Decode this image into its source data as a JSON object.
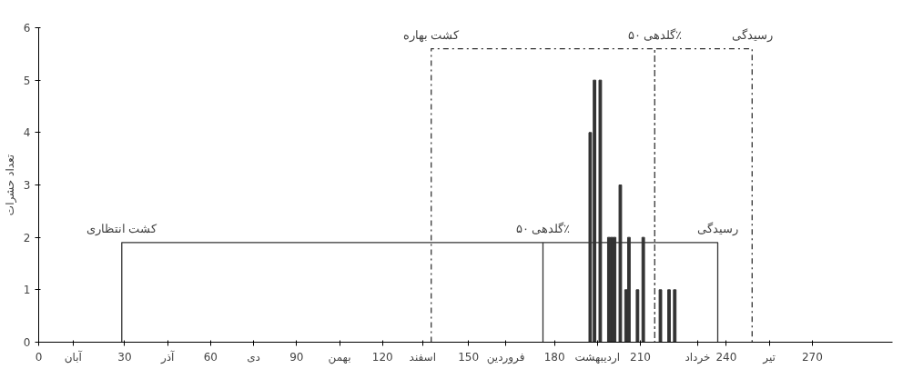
{
  "chart_data": {
    "type": "bar",
    "ylabel": "تعداد حشرات",
    "xlim": [
      0,
      298
    ],
    "ylim": [
      0,
      6
    ],
    "yticks": [
      0,
      1,
      2,
      3,
      4,
      5,
      6
    ],
    "xticks": [
      0,
      30,
      60,
      90,
      120,
      150,
      180,
      210,
      240,
      270,
      {
        "value": 12,
        "label": "آبان"
      },
      {
        "value": 45,
        "label": "آذر"
      },
      {
        "value": 75,
        "label": "دی"
      },
      {
        "value": 105,
        "label": "بهمن"
      },
      {
        "value": 134,
        "label": "اسفند"
      },
      {
        "value": 163,
        "label": "فروردین"
      },
      {
        "value": 195,
        "label": "اردیبهشت"
      },
      {
        "value": 230,
        "label": "خرداد"
      },
      {
        "value": 255,
        "label": "تیر"
      }
    ],
    "series": [
      {
        "color": "#333333",
        "x": [
          192.5,
          194,
          196,
          199,
          200,
          201,
          203,
          205,
          206,
          209,
          211,
          217,
          220,
          222
        ],
        "values": [
          4,
          5,
          5,
          2,
          2,
          2,
          3,
          1,
          2,
          1,
          2,
          1,
          1,
          1
        ]
      },
      {
        "type": "line",
        "color": "#333333",
        "line_style": "solid",
        "x": [
          29,
          29,
          176,
          176,
          176,
          237,
          237
        ],
        "values": [
          0,
          1.9,
          1.9,
          0,
          1.9,
          1.9,
          0
        ]
      },
      {
        "type": "line",
        "color": "#333333",
        "line_style": "dashed",
        "x": [
          137,
          137,
          215,
          215,
          215,
          249,
          249
        ],
        "values": [
          0,
          5.6,
          5.6,
          0,
          5.6,
          5.6,
          0
        ]
      }
    ],
    "annotations": [
      "کشت انتظاری",
      "گلدهی ۵۰٪",
      "رسیدگی",
      "کشت بهاره",
      "گلدهی ۵۰٪",
      "رسیدگی"
    ]
  }
}
